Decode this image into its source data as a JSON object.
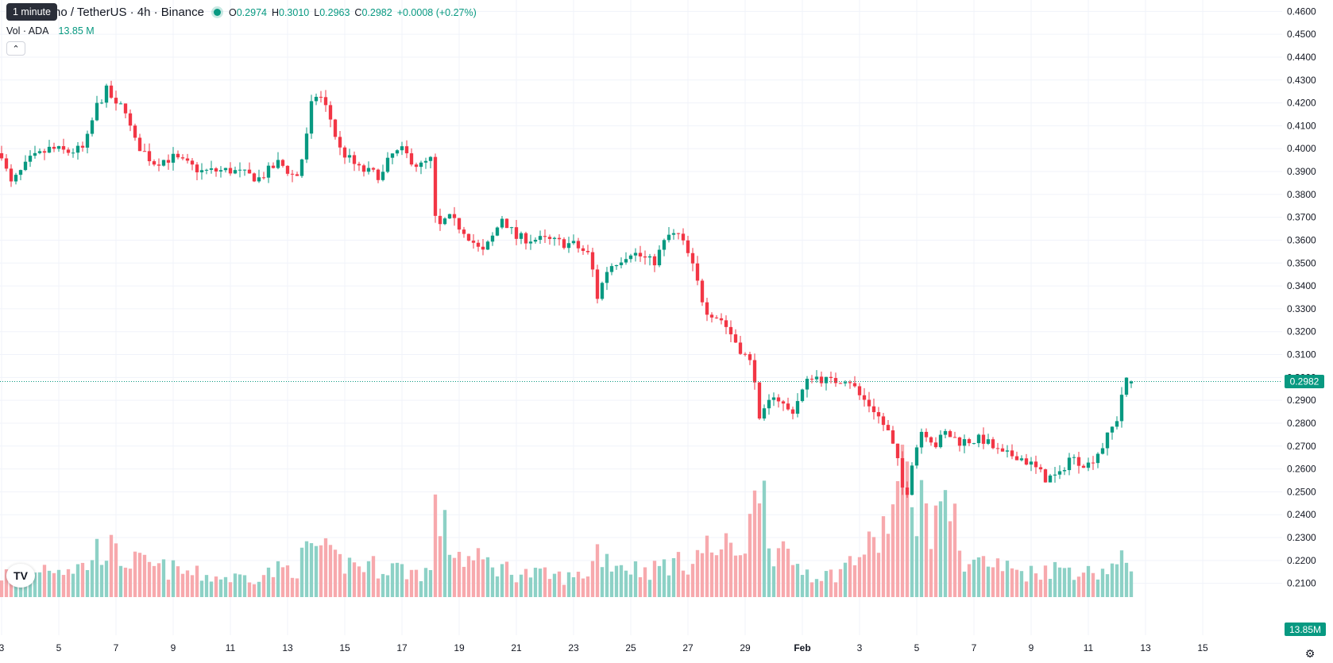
{
  "header": {
    "symbol_text": "no / TetherUS · 4h · Binance",
    "tooltip": "1 minute",
    "ohlc": {
      "o_label": "O",
      "o": "0.2974",
      "h_label": "H",
      "h": "0.3010",
      "l_label": "L",
      "l": "0.2963",
      "c_label": "C",
      "c": "0.2982",
      "change": "+0.0008 (+0.27%)"
    },
    "volume": {
      "label": "Vol · ADA",
      "value": "13.85 M"
    },
    "collapse_icon": "chevron-up-icon",
    "logo_icon": "tradingview-logo",
    "logo_text": "TV"
  },
  "colors": {
    "up": "#089981",
    "down": "#f23645",
    "up_vol": "#8dd1c6",
    "down_vol": "#f7a9ad",
    "grid": "#f0f3fa"
  },
  "chart_data": {
    "type": "candlestick",
    "interval": "4h",
    "y_range": [
      0.196,
      0.4615
    ],
    "y_ticks": [
      "0.2100",
      "0.2200",
      "0.2300",
      "0.2400",
      "0.2500",
      "0.2600",
      "0.2700",
      "0.2800",
      "0.2900",
      "0.3000",
      "0.3100",
      "0.3200",
      "0.3300",
      "0.3400",
      "0.3500",
      "0.3600",
      "0.3700",
      "0.3800",
      "0.3900",
      "0.4000",
      "0.4100",
      "0.4200",
      "0.4300",
      "0.4400",
      "0.4500",
      "0.4600"
    ],
    "x_ticks": [
      "3",
      "5",
      "7",
      "9",
      "11",
      "13",
      "15",
      "17",
      "19",
      "21",
      "23",
      "25",
      "27",
      "29",
      "Feb",
      "3",
      "5",
      "7",
      "9",
      "11",
      "13",
      "15"
    ],
    "last_price": "0.2982",
    "last_volume": "13.85M",
    "grid": true,
    "anchors": [
      {
        "d": 0,
        "p": 0.398,
        "v": 8
      },
      {
        "d": 0.3,
        "p": 0.384,
        "v": 9
      },
      {
        "d": 1.0,
        "p": 0.395,
        "v": 10
      },
      {
        "d": 1.7,
        "p": 0.4,
        "v": 12
      },
      {
        "d": 2.3,
        "p": 0.3985,
        "v": 11
      },
      {
        "d": 2.9,
        "p": 0.4,
        "v": 11
      },
      {
        "d": 3.3,
        "p": 0.418,
        "v": 17
      },
      {
        "d": 3.7,
        "p": 0.426,
        "v": 19
      },
      {
        "d": 4.0,
        "p": 0.418,
        "v": 15
      },
      {
        "d": 4.3,
        "p": 0.419,
        "v": 14
      },
      {
        "d": 4.6,
        "p": 0.404,
        "v": 13
      },
      {
        "d": 5.3,
        "p": 0.394,
        "v": 11
      },
      {
        "d": 6.0,
        "p": 0.396,
        "v": 10
      },
      {
        "d": 7.0,
        "p": 0.39,
        "v": 8
      },
      {
        "d": 8.0,
        "p": 0.3905,
        "v": 7
      },
      {
        "d": 9.0,
        "p": 0.387,
        "v": 8
      },
      {
        "d": 9.7,
        "p": 0.394,
        "v": 10
      },
      {
        "d": 10.3,
        "p": 0.387,
        "v": 11
      },
      {
        "d": 10.6,
        "p": 0.4,
        "v": 15
      },
      {
        "d": 10.9,
        "p": 0.424,
        "v": 20
      },
      {
        "d": 11.2,
        "p": 0.422,
        "v": 17
      },
      {
        "d": 11.5,
        "p": 0.413,
        "v": 14
      },
      {
        "d": 11.8,
        "p": 0.4,
        "v": 13
      },
      {
        "d": 12.5,
        "p": 0.391,
        "v": 12
      },
      {
        "d": 13.3,
        "p": 0.388,
        "v": 11
      },
      {
        "d": 13.6,
        "p": 0.397,
        "v": 12
      },
      {
        "d": 14.0,
        "p": 0.399,
        "v": 10
      },
      {
        "d": 14.6,
        "p": 0.392,
        "v": 9
      },
      {
        "d": 15.0,
        "p": 0.395,
        "v": 10
      },
      {
        "d": 15.2,
        "p": 0.364,
        "v": 35
      },
      {
        "d": 15.6,
        "p": 0.37,
        "v": 20
      },
      {
        "d": 16.2,
        "p": 0.364,
        "v": 14
      },
      {
        "d": 16.8,
        "p": 0.354,
        "v": 13
      },
      {
        "d": 17.2,
        "p": 0.362,
        "v": 12
      },
      {
        "d": 17.5,
        "p": 0.37,
        "v": 11
      },
      {
        "d": 18.0,
        "p": 0.361,
        "v": 9
      },
      {
        "d": 19.0,
        "p": 0.36,
        "v": 8
      },
      {
        "d": 20.0,
        "p": 0.358,
        "v": 7
      },
      {
        "d": 20.6,
        "p": 0.353,
        "v": 10
      },
      {
        "d": 20.8,
        "p": 0.334,
        "v": 18
      },
      {
        "d": 21.2,
        "p": 0.348,
        "v": 14
      },
      {
        "d": 22.0,
        "p": 0.355,
        "v": 11
      },
      {
        "d": 22.8,
        "p": 0.35,
        "v": 10
      },
      {
        "d": 23.3,
        "p": 0.362,
        "v": 13
      },
      {
        "d": 23.7,
        "p": 0.362,
        "v": 12
      },
      {
        "d": 24.1,
        "p": 0.351,
        "v": 14
      },
      {
        "d": 24.6,
        "p": 0.33,
        "v": 18
      },
      {
        "d": 25.2,
        "p": 0.325,
        "v": 17
      },
      {
        "d": 25.8,
        "p": 0.313,
        "v": 19
      },
      {
        "d": 26.3,
        "p": 0.304,
        "v": 28
      },
      {
        "d": 26.5,
        "p": 0.28,
        "v": 55
      },
      {
        "d": 27.0,
        "p": 0.293,
        "v": 17
      },
      {
        "d": 27.6,
        "p": 0.284,
        "v": 13
      },
      {
        "d": 28.0,
        "p": 0.294,
        "v": 11
      },
      {
        "d": 28.3,
        "p": 0.301,
        "v": 9
      },
      {
        "d": 29.0,
        "p": 0.298,
        "v": 8
      },
      {
        "d": 29.6,
        "p": 0.3,
        "v": 12
      },
      {
        "d": 30.0,
        "p": 0.292,
        "v": 16
      },
      {
        "d": 30.5,
        "p": 0.286,
        "v": 19
      },
      {
        "d": 31.0,
        "p": 0.276,
        "v": 28
      },
      {
        "d": 31.3,
        "p": 0.265,
        "v": 37
      },
      {
        "d": 31.6,
        "p": 0.245,
        "v": 45
      },
      {
        "d": 31.8,
        "p": 0.262,
        "v": 40
      },
      {
        "d": 32.2,
        "p": 0.278,
        "v": 34
      },
      {
        "d": 32.7,
        "p": 0.27,
        "v": 24
      },
      {
        "d": 32.95,
        "p": 0.276,
        "v": 50
      },
      {
        "d": 33.5,
        "p": 0.272,
        "v": 15
      },
      {
        "d": 34.3,
        "p": 0.273,
        "v": 13
      },
      {
        "d": 35.0,
        "p": 0.266,
        "v": 11
      },
      {
        "d": 35.5,
        "p": 0.266,
        "v": 10
      },
      {
        "d": 36.0,
        "p": 0.262,
        "v": 9
      },
      {
        "d": 36.5,
        "p": 0.256,
        "v": 11
      },
      {
        "d": 37.0,
        "p": 0.257,
        "v": 10
      },
      {
        "d": 37.3,
        "p": 0.265,
        "v": 11
      },
      {
        "d": 38.0,
        "p": 0.262,
        "v": 9
      },
      {
        "d": 38.5,
        "p": 0.27,
        "v": 10
      },
      {
        "d": 39.0,
        "p": 0.282,
        "v": 12
      },
      {
        "d": 39.25,
        "p": 0.2982,
        "v": 13
      },
      {
        "d": 39.5,
        "p": 0.2982,
        "v": 12
      }
    ]
  }
}
